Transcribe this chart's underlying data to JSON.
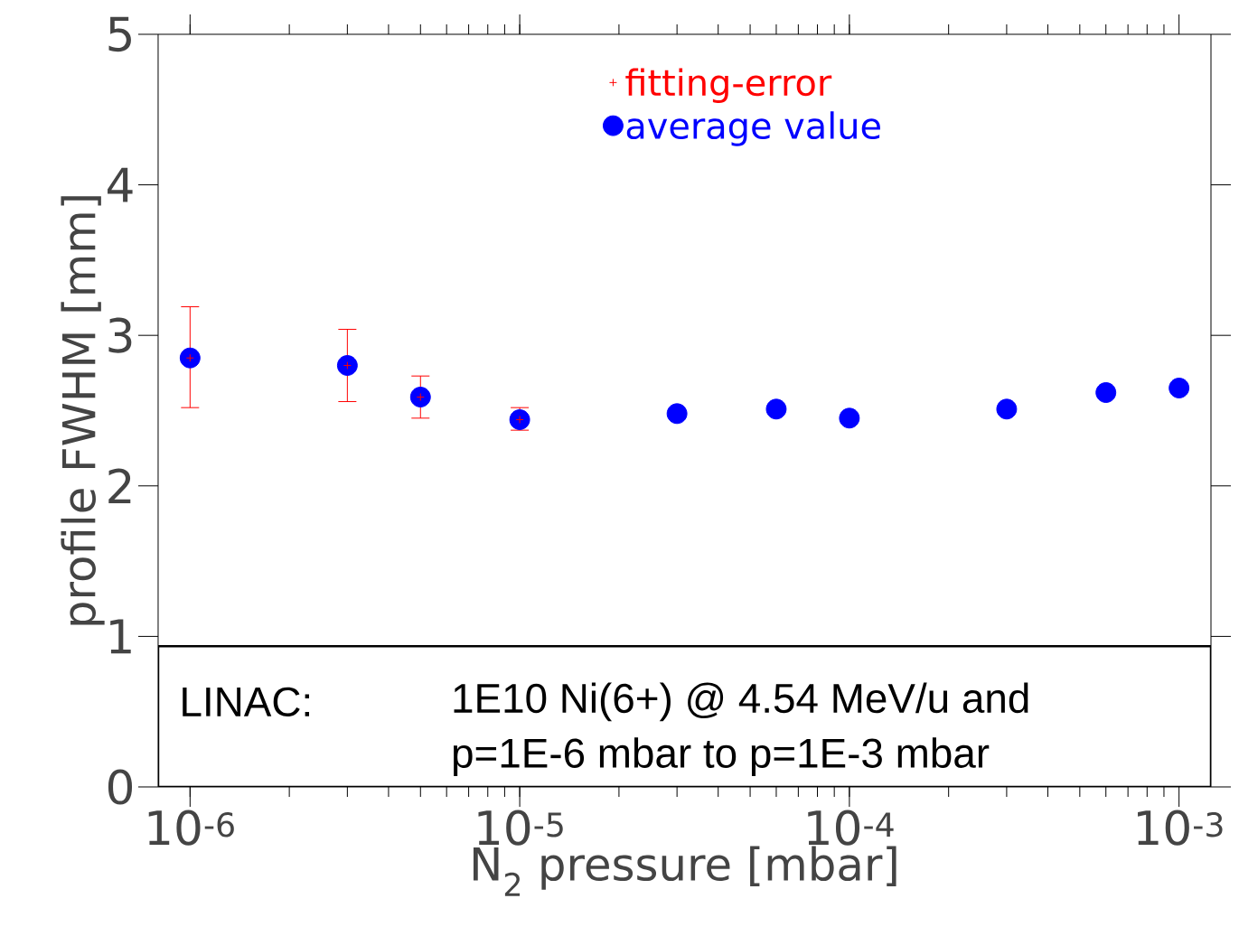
{
  "chart_data": {
    "type": "scatter",
    "xlabel": "N$_{2}$ pressure [mbar]",
    "ylabel": "profile FWHM [mm]",
    "log": "x",
    "xlim": [
      8e-07,
      0.00125
    ],
    "ylim": [
      0,
      5
    ],
    "xticks": [
      {
        "value": 1e-06,
        "label": "10$^{-6}$"
      },
      {
        "value": 1e-05,
        "label": "10$^{-5}$"
      },
      {
        "value": 0.0001,
        "label": "10$^{-4}$"
      },
      {
        "value": 0.001,
        "label": "10$^{-3}$"
      }
    ],
    "yticks": [
      0,
      1,
      2,
      3,
      4,
      5
    ],
    "x": [
      1e-06,
      3e-06,
      5e-06,
      1e-05,
      3e-05,
      6e-05,
      0.0001,
      0.0003,
      0.0006,
      0.001
    ],
    "series": [
      {
        "name": "fitting-error",
        "color": "#ff0000",
        "marker": "cross",
        "values": [
          2.85,
          2.8,
          2.59,
          2.44,
          null,
          null,
          null,
          null,
          null,
          null
        ],
        "errors": [
          [
            2.52,
            3.19
          ],
          [
            2.56,
            3.04
          ],
          [
            2.45,
            2.73
          ],
          [
            2.37,
            2.52
          ],
          null,
          null,
          null,
          null,
          null,
          null
        ]
      },
      {
        "name": "average value",
        "color": "#0000ff",
        "marker": "circle",
        "values": [
          2.85,
          2.8,
          2.59,
          2.44,
          2.48,
          2.51,
          2.45,
          2.51,
          2.62,
          2.65
        ]
      }
    ],
    "legend": "top",
    "grid": false,
    "annotations": [
      "LINAC:",
      "1E10 Ni(6+) @ 4.54 MeV/u and",
      "p=1E-6 mbar to p=1E-3 mbar"
    ]
  }
}
